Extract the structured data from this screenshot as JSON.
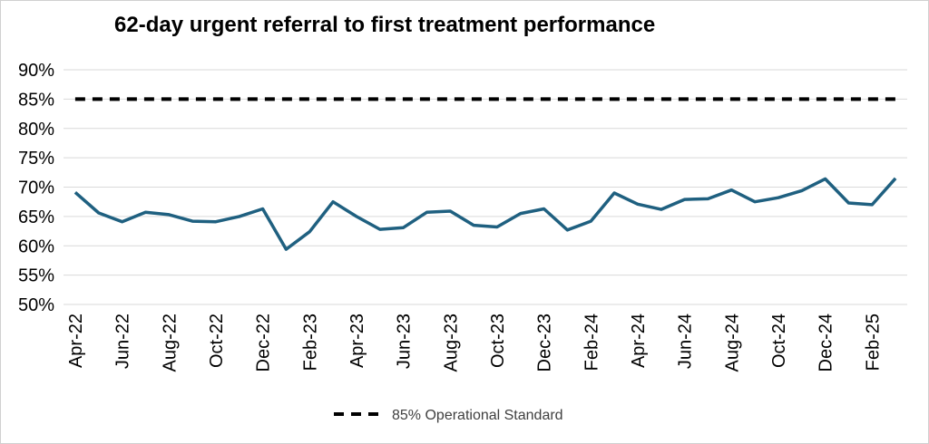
{
  "chart_data": {
    "type": "line",
    "title": "62-day urgent referral to first treatment performance",
    "xlabel": "",
    "ylabel": "",
    "ylim": [
      0.5,
      0.9
    ],
    "yticks": [
      "90%",
      "85%",
      "80%",
      "75%",
      "70%",
      "65%",
      "60%",
      "55%",
      "50%"
    ],
    "ytick_values": [
      0.9,
      0.85,
      0.8,
      0.75,
      0.7,
      0.65,
      0.6,
      0.55,
      0.5
    ],
    "grid": true,
    "legend_position": "bottom",
    "x": [
      "Apr-22",
      "May-22",
      "Jun-22",
      "Jul-22",
      "Aug-22",
      "Sep-22",
      "Oct-22",
      "Nov-22",
      "Dec-22",
      "Jan-23",
      "Feb-23",
      "Mar-23",
      "Apr-23",
      "May-23",
      "Jun-23",
      "Jul-23",
      "Aug-23",
      "Sep-23",
      "Oct-23",
      "Nov-23",
      "Dec-23",
      "Jan-24",
      "Feb-24",
      "Mar-24",
      "Apr-24",
      "May-24",
      "Jun-24",
      "Jul-24",
      "Aug-24",
      "Sep-24",
      "Oct-24",
      "Nov-24",
      "Dec-24",
      "Jan-25",
      "Feb-25",
      "Mar-25"
    ],
    "x_tick_labels": [
      "Apr-22",
      "Jun-22",
      "Aug-22",
      "Oct-22",
      "Dec-22",
      "Feb-23",
      "Apr-23",
      "Jun-23",
      "Aug-23",
      "Oct-23",
      "Dec-23",
      "Feb-24",
      "Apr-24",
      "Jun-24",
      "Aug-24",
      "Oct-24",
      "Dec-24",
      "Feb-25"
    ],
    "series": [
      {
        "values": [
          0.691,
          0.656,
          0.641,
          0.657,
          0.653,
          0.642,
          0.641,
          0.65,
          0.663,
          0.594,
          0.624,
          0.675,
          0.65,
          0.628,
          0.631,
          0.657,
          0.659,
          0.635,
          0.632,
          0.655,
          0.663,
          0.627,
          0.642,
          0.69,
          0.671,
          0.662,
          0.679,
          0.68,
          0.695,
          0.675,
          0.682,
          0.694,
          0.714,
          0.673,
          0.67,
          0.715
        ],
        "color": "#1f6080",
        "style": "solid"
      },
      {
        "name": "85% Operational Standard",
        "values": [
          0.85,
          0.85,
          0.85,
          0.85,
          0.85,
          0.85,
          0.85,
          0.85,
          0.85,
          0.85,
          0.85,
          0.85,
          0.85,
          0.85,
          0.85,
          0.85,
          0.85,
          0.85,
          0.85,
          0.85,
          0.85,
          0.85,
          0.85,
          0.85,
          0.85,
          0.85,
          0.85,
          0.85,
          0.85,
          0.85,
          0.85,
          0.85,
          0.85,
          0.85,
          0.85,
          0.85
        ],
        "color": "#000000",
        "style": "dashed"
      }
    ]
  }
}
